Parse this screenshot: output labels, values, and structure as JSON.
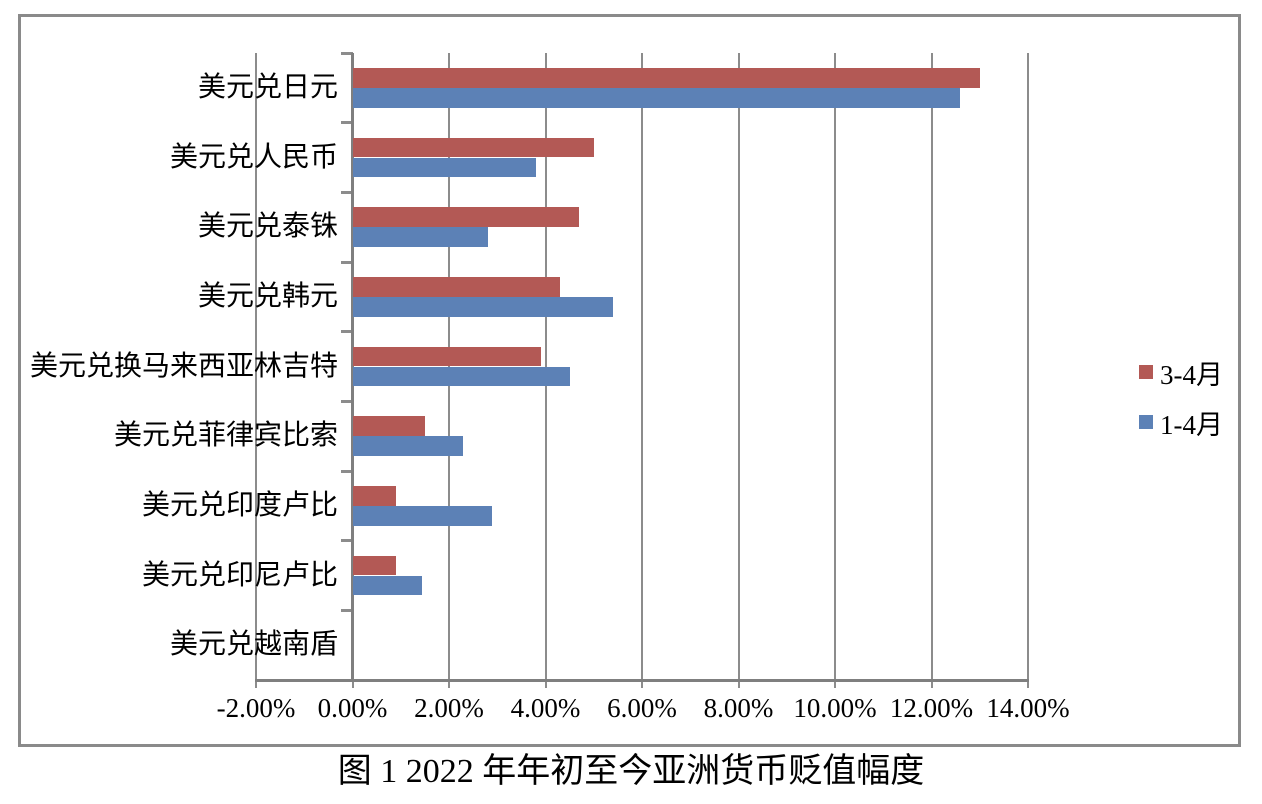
{
  "chart_data": {
    "type": "bar",
    "orientation": "horizontal",
    "title": "图 1 2022 年年初至今亚洲货币贬值幅度",
    "categories": [
      "美元兑日元",
      "美元兑人民币",
      "美元兑泰铢",
      "美元兑韩元",
      "美元兑换马来西亚林吉特",
      "美元兑菲律宾比索",
      "美元兑印度卢比",
      "美元兑印尼卢比",
      "美元兑越南盾"
    ],
    "series": [
      {
        "name": "3-4月",
        "color": "#b35955",
        "values": [
          13.0,
          5.0,
          4.7,
          4.3,
          3.9,
          1.5,
          0.9,
          0.9,
          0
        ]
      },
      {
        "name": "1-4月",
        "color": "#5c81b6",
        "values": [
          12.6,
          3.8,
          2.8,
          5.4,
          4.5,
          2.3,
          2.9,
          1.45,
          0
        ]
      }
    ],
    "x_axis": {
      "min": -2,
      "max": 14,
      "step": 2,
      "tick_labels": [
        "-2.00%",
        "0.00%",
        "2.00%",
        "4.00%",
        "6.00%",
        "8.00%",
        "10.00%",
        "12.00%",
        "14.00%"
      ]
    },
    "legend_position": "right",
    "grid": true
  },
  "colors": {
    "bar_red": "#b35955",
    "bar_blue": "#5c81b6",
    "gridline": "#8c8c8c",
    "frame_border": "#8a8a8a",
    "text": "#000000",
    "background": "#ffffff"
  }
}
